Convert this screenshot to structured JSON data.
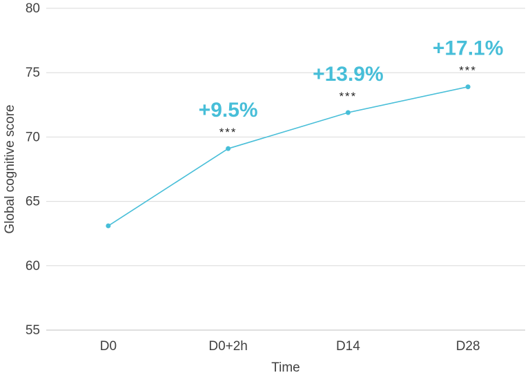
{
  "chart_data": {
    "type": "line",
    "title": "",
    "categories": [
      "D0",
      "D0+2h",
      "D14",
      "D28"
    ],
    "series": [
      {
        "name": "Global cognitive score",
        "values": [
          63.1,
          69.1,
          71.9,
          73.9
        ]
      }
    ],
    "xlabel": "Time",
    "ylabel": "Global cognitive score",
    "ylim": [
      55,
      80
    ],
    "yticks": [
      55,
      60,
      65,
      70,
      75,
      80
    ],
    "grid": true,
    "legend_position": "none",
    "annotations": [
      {
        "category": "D0+2h",
        "percent": "+9.5%",
        "significance": "***"
      },
      {
        "category": "D14",
        "percent": "+13.9%",
        "significance": "***"
      },
      {
        "category": "D28",
        "percent": "+17.1%",
        "significance": "***"
      }
    ],
    "colors": {
      "line": "#47BED8",
      "marker": "#47BED8",
      "percent_label": "#47BED8",
      "significance_label": "#262626",
      "tick_label": "#404040",
      "axis_title": "#404040",
      "gridline": "#D9D9D9",
      "axis_line": "#BFBFBF"
    }
  }
}
